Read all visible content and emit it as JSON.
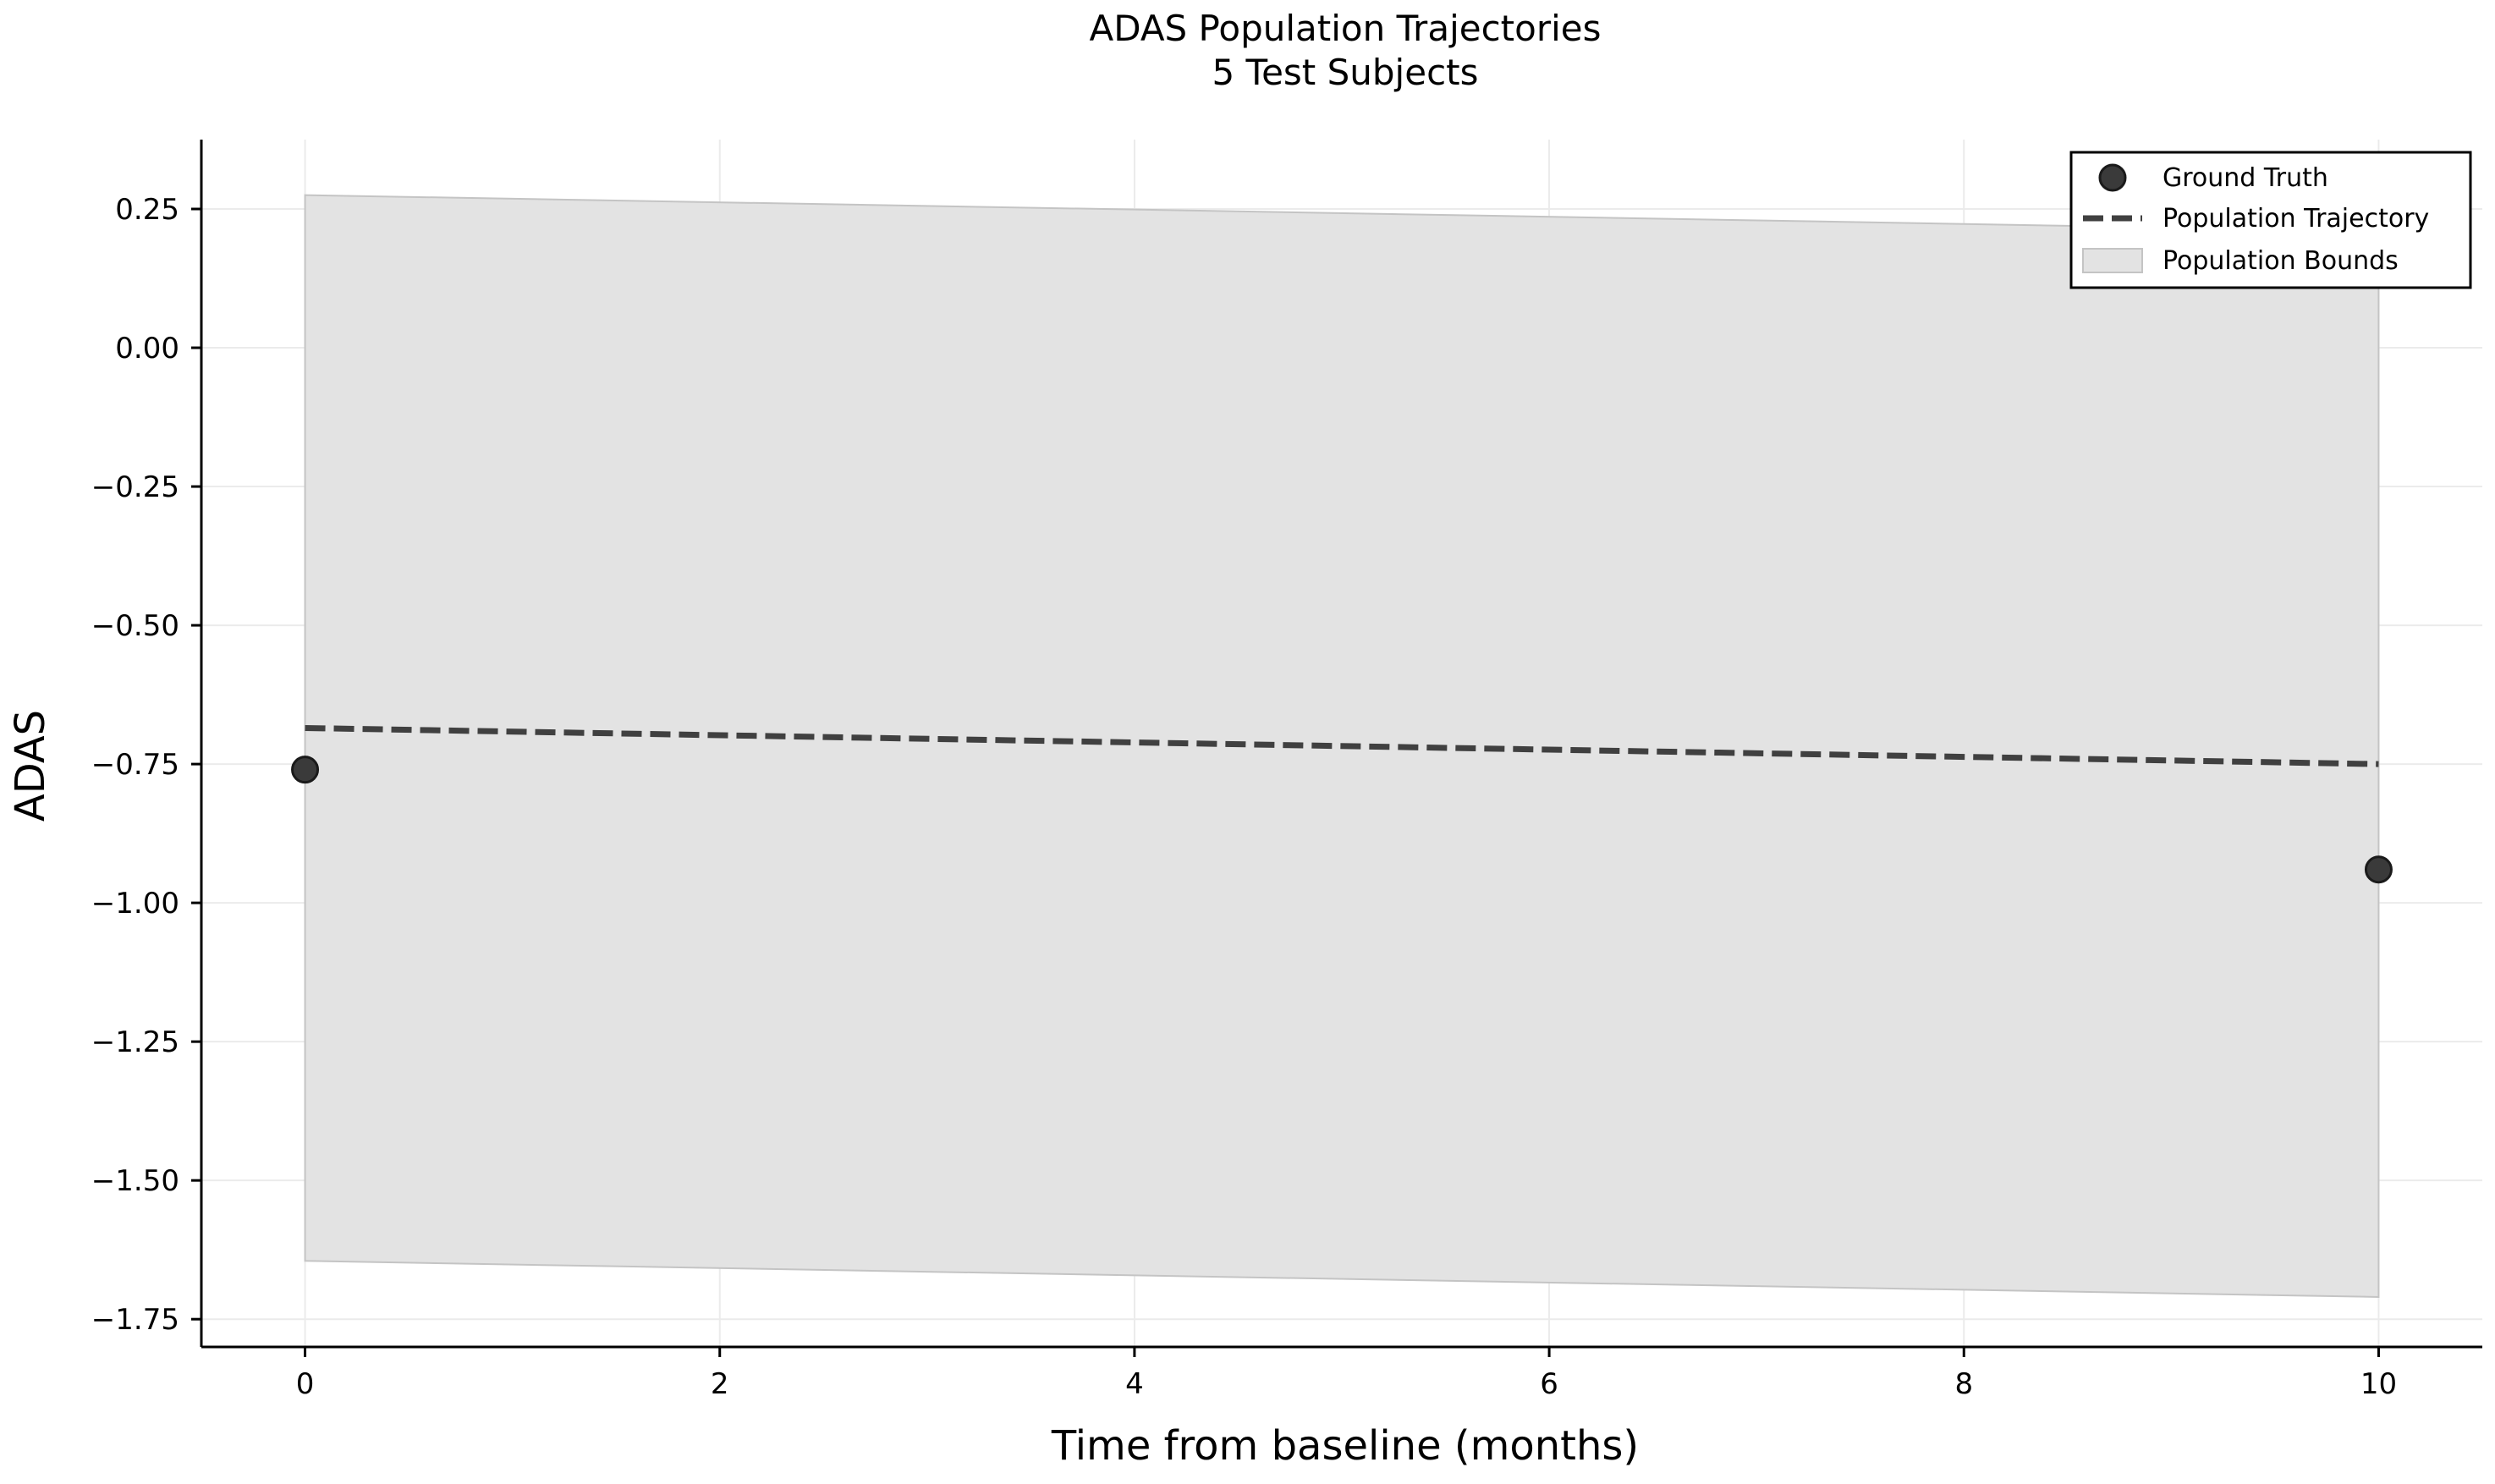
{
  "chart_data": {
    "type": "line",
    "title": "ADAS Population Trajectories",
    "subtitle": "5 Test Subjects",
    "xlabel": "Time from baseline (months)",
    "ylabel": "ADAS",
    "xlim": [
      -0.5,
      10.5
    ],
    "ylim": [
      -1.8,
      0.375
    ],
    "x_ticks": [
      0,
      2,
      4,
      6,
      8,
      10
    ],
    "x_tick_labels": [
      "0",
      "2",
      "4",
      "6",
      "8",
      "10"
    ],
    "y_ticks": [
      0.25,
      0.0,
      -0.25,
      -0.5,
      -0.75,
      -1.0,
      -1.25,
      -1.5,
      -1.75
    ],
    "y_tick_labels": [
      "0.25",
      "0.00",
      "−0.25",
      "−0.50",
      "−0.75",
      "−1.00",
      "−1.25",
      "−1.50",
      "−1.75"
    ],
    "grid": true,
    "legend_position": "top-right",
    "series": [
      {
        "name": "Ground Truth",
        "kind": "scatter",
        "color": "#3a3a3a",
        "x": [
          0,
          10
        ],
        "y": [
          -0.76,
          -0.94
        ]
      },
      {
        "name": "Population Trajectory",
        "kind": "line",
        "style": "dashed",
        "color": "#404040",
        "x": [
          0,
          10
        ],
        "y": [
          -0.685,
          -0.75
        ]
      },
      {
        "name": "Population Bounds",
        "kind": "band",
        "color": "#cccccc",
        "x": [
          0,
          10
        ],
        "upper": [
          0.275,
          0.21
        ],
        "lower": [
          -1.645,
          -1.71
        ]
      }
    ]
  }
}
